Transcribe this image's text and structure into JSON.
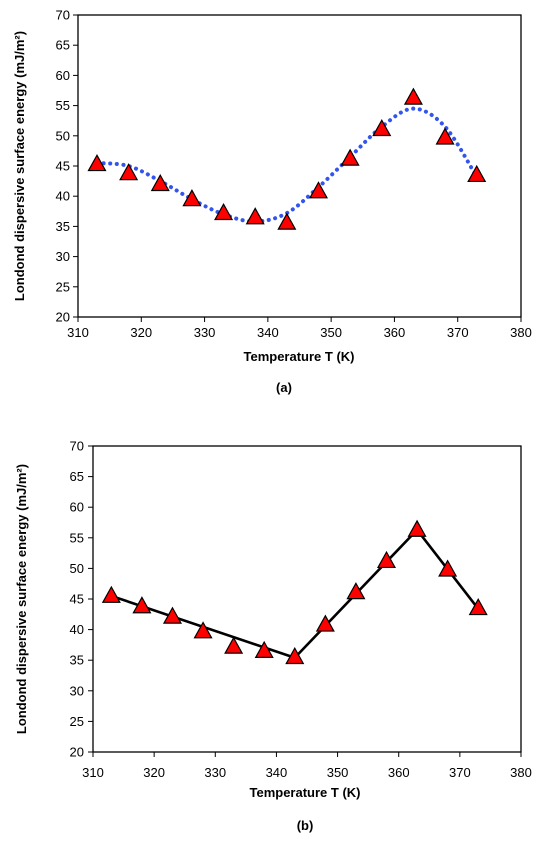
{
  "chart_data": [
    {
      "type": "scatter",
      "panel_label": "(a)",
      "xlabel": "Temperature T (K)",
      "ylabel": "Londond dispersive surface energy (mJ/m²)",
      "xlim": [
        310,
        380
      ],
      "ylim": [
        20,
        70
      ],
      "xticks": [
        "310",
        "320",
        "330",
        "340",
        "350",
        "360",
        "370",
        "380"
      ],
      "yticks": [
        "20",
        "25",
        "30",
        "35",
        "40",
        "45",
        "50",
        "55",
        "60",
        "65",
        "70"
      ],
      "grid": false,
      "legend": "none",
      "marker": "triangle",
      "marker_color": "#ff0000",
      "line_color": "#3355ee",
      "line_style": "dotted",
      "x": [
        313,
        318,
        323,
        328,
        333,
        338,
        343,
        348,
        353,
        358,
        363,
        368,
        373
      ],
      "y": [
        45.3,
        43.8,
        42,
        39.5,
        37.2,
        36.5,
        35.6,
        40.8,
        46.2,
        51.1,
        56.3,
        49.7,
        43.5
      ],
      "trend": {
        "x": [
          313,
          318,
          323,
          328,
          333,
          338,
          343,
          348,
          353,
          358,
          363,
          368,
          373
        ],
        "y": [
          45.5,
          45.0,
          42.5,
          39.5,
          37.0,
          35.8,
          37.2,
          41.5,
          46.5,
          51.5,
          54.5,
          51.5,
          43.2
        ]
      }
    },
    {
      "type": "line",
      "panel_label": "(b)",
      "xlabel": "Temperature T (K)",
      "ylabel": "Londond dispersive surface energy (mJ/m²)",
      "xlim": [
        310,
        380
      ],
      "ylim": [
        20,
        70
      ],
      "xticks": [
        "310",
        "320",
        "330",
        "340",
        "350",
        "360",
        "370",
        "380"
      ],
      "yticks": [
        "20",
        "25",
        "30",
        "35",
        "40",
        "45",
        "50",
        "55",
        "60",
        "65",
        "70"
      ],
      "grid": false,
      "legend": "none",
      "marker": "triangle",
      "marker_color": "#ff0000",
      "line_color": "#000000",
      "line_style": "solid",
      "x": [
        313,
        318,
        323,
        328,
        333,
        338,
        343,
        348,
        353,
        358,
        363,
        368,
        373
      ],
      "y": [
        45.5,
        43.8,
        42.1,
        39.7,
        37.2,
        36.5,
        35.5,
        40.8,
        46.1,
        51.2,
        56.3,
        49.8,
        43.5
      ],
      "fit_segments": [
        {
          "x": [
            313,
            343
          ],
          "y": [
            45.5,
            35.4
          ]
        },
        {
          "x": [
            343,
            363
          ],
          "y": [
            35.4,
            56.3
          ]
        },
        {
          "x": [
            363,
            373
          ],
          "y": [
            56.3,
            43.4
          ]
        }
      ]
    }
  ]
}
